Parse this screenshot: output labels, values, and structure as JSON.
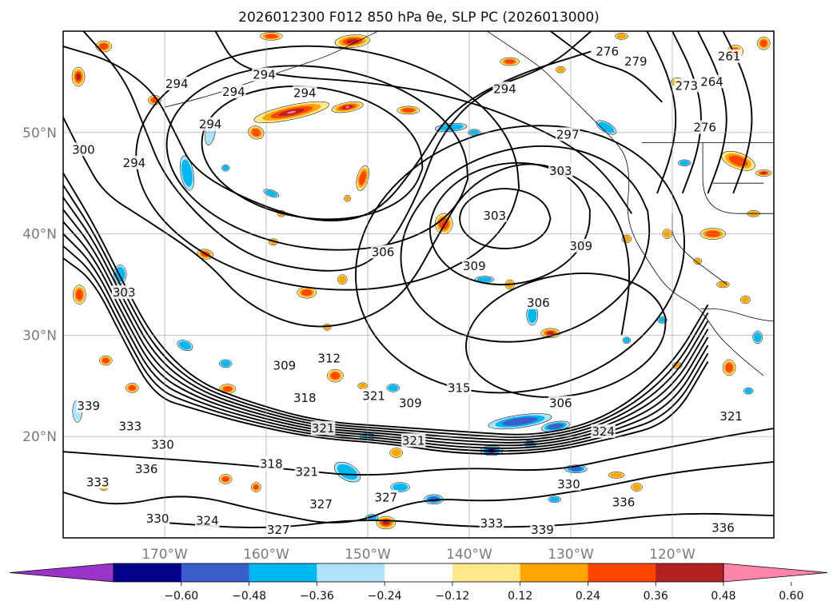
{
  "title": "2026012300 F012 850 hPa θe, SLP PC (2026013000)",
  "map": {
    "lon_range": [
      -180,
      -110
    ],
    "lat_range": [
      10,
      60
    ],
    "lat_ticks": [
      {
        "lat": 50,
        "label": "50°N"
      },
      {
        "lat": 40,
        "label": "40°N"
      },
      {
        "lat": 30,
        "label": "30°N"
      },
      {
        "lat": 20,
        "label": "20°N"
      }
    ],
    "lon_ticks": [
      {
        "lon": -170,
        "label": "170°W"
      },
      {
        "lon": -160,
        "label": "160°W"
      },
      {
        "lon": -150,
        "label": "150°W"
      },
      {
        "lon": -140,
        "label": "140°W"
      },
      {
        "lon": -130,
        "label": "130°W"
      },
      {
        "lon": -120,
        "label": "120°W"
      }
    ],
    "grid": true,
    "contour_field": "850 hPa θe",
    "shaded_field": "SLP PC",
    "contour_labels": [
      {
        "text": "294",
        "lon": -168.8,
        "lat": 54.8
      },
      {
        "text": "294",
        "lon": -163.2,
        "lat": 54.0
      },
      {
        "text": "294",
        "lon": -160.2,
        "lat": 55.7
      },
      {
        "text": "294",
        "lon": -156.2,
        "lat": 53.9
      },
      {
        "text": "294",
        "lon": -173.0,
        "lat": 47.0
      },
      {
        "text": "294",
        "lon": -165.5,
        "lat": 50.8
      },
      {
        "text": "294",
        "lon": -136.5,
        "lat": 54.3
      },
      {
        "text": "300",
        "lon": -178.0,
        "lat": 48.3
      },
      {
        "text": "297",
        "lon": -130.3,
        "lat": 49.8
      },
      {
        "text": "303",
        "lon": -131.0,
        "lat": 46.2
      },
      {
        "text": "303",
        "lon": -137.5,
        "lat": 41.8
      },
      {
        "text": "306",
        "lon": -148.5,
        "lat": 38.2
      },
      {
        "text": "309",
        "lon": -139.5,
        "lat": 36.8
      },
      {
        "text": "309",
        "lon": -129.0,
        "lat": 38.8
      },
      {
        "text": "306",
        "lon": -133.2,
        "lat": 33.2
      },
      {
        "text": "303",
        "lon": -174.0,
        "lat": 34.2
      },
      {
        "text": "309",
        "lon": -158.2,
        "lat": 27.0
      },
      {
        "text": "312",
        "lon": -153.8,
        "lat": 27.7
      },
      {
        "text": "318",
        "lon": -156.2,
        "lat": 23.8
      },
      {
        "text": "321",
        "lon": -149.4,
        "lat": 24.0
      },
      {
        "text": "309",
        "lon": -145.8,
        "lat": 23.3
      },
      {
        "text": "315",
        "lon": -141.0,
        "lat": 24.8
      },
      {
        "text": "306",
        "lon": -131.0,
        "lat": 23.3
      },
      {
        "text": "321",
        "lon": -154.4,
        "lat": 20.8
      },
      {
        "text": "321",
        "lon": -145.5,
        "lat": 19.6
      },
      {
        "text": "324",
        "lon": -126.8,
        "lat": 20.5
      },
      {
        "text": "321",
        "lon": -114.2,
        "lat": 22.0
      },
      {
        "text": "339",
        "lon": -177.5,
        "lat": 23.0
      },
      {
        "text": "333",
        "lon": -173.4,
        "lat": 21.0
      },
      {
        "text": "330",
        "lon": -170.2,
        "lat": 19.2
      },
      {
        "text": "336",
        "lon": -171.8,
        "lat": 16.8
      },
      {
        "text": "333",
        "lon": -176.6,
        "lat": 15.5
      },
      {
        "text": "318",
        "lon": -159.5,
        "lat": 17.3
      },
      {
        "text": "321",
        "lon": -156.0,
        "lat": 16.5
      },
      {
        "text": "327",
        "lon": -154.6,
        "lat": 13.3
      },
      {
        "text": "327",
        "lon": -148.2,
        "lat": 14.0
      },
      {
        "text": "330",
        "lon": -170.7,
        "lat": 11.9
      },
      {
        "text": "324",
        "lon": -165.8,
        "lat": 11.7
      },
      {
        "text": "327",
        "lon": -158.8,
        "lat": 10.8
      },
      {
        "text": "330",
        "lon": -130.2,
        "lat": 15.3
      },
      {
        "text": "333",
        "lon": -137.8,
        "lat": 11.4
      },
      {
        "text": "339",
        "lon": -132.8,
        "lat": 10.8
      },
      {
        "text": "336",
        "lon": -124.8,
        "lat": 13.5
      },
      {
        "text": "336",
        "lon": -115.0,
        "lat": 11.0
      },
      {
        "text": "279",
        "lon": -123.6,
        "lat": 57.0
      },
      {
        "text": "276",
        "lon": -126.4,
        "lat": 58.0
      },
      {
        "text": "261",
        "lon": -114.4,
        "lat": 57.5
      },
      {
        "text": "264",
        "lon": -116.1,
        "lat": 55.0
      },
      {
        "text": "273",
        "lon": -118.6,
        "lat": 54.6
      },
      {
        "text": "276",
        "lon": -116.8,
        "lat": 50.5
      }
    ]
  },
  "colorbar": {
    "ticks": [
      "−0.60",
      "−0.48",
      "−0.36",
      "−0.24",
      "−0.12",
      "0.12",
      "0.24",
      "0.36",
      "0.48",
      "0.60"
    ],
    "colors": [
      "#9a34c8",
      "#02028a",
      "#3a5fcd",
      "#00b8f0",
      "#afe2fb",
      "#ffffff",
      "#ffe98a",
      "#ffa500",
      "#ff4500",
      "#b22222",
      "#ff85a8"
    ],
    "extend": "both"
  }
}
